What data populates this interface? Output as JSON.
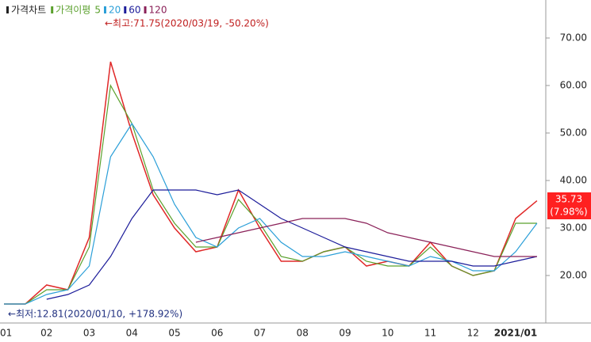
{
  "chart_data": {
    "type": "line",
    "legend_group": "가격이평",
    "categories": [
      "01",
      null,
      "02",
      null,
      "03",
      null,
      "04",
      null,
      "05",
      null,
      "06",
      null,
      "07",
      null,
      "08",
      null,
      "09",
      null,
      "10",
      null,
      "11",
      null,
      "12",
      null,
      "2021/01",
      null
    ],
    "series": [
      {
        "name": "가격차트",
        "color": "#e02828",
        "values": [
          14,
          14,
          18,
          17,
          28,
          65,
          50,
          37,
          30,
          25,
          26,
          38,
          30,
          23,
          23,
          25,
          26,
          22,
          23,
          22,
          27,
          22,
          20,
          21,
          32,
          35.73
        ]
      },
      {
        "name": "5",
        "color": "#5aa02c",
        "values": [
          14,
          14,
          17,
          17,
          26,
          60,
          52,
          38,
          31,
          26,
          26,
          36,
          31,
          24,
          23,
          25,
          26,
          23,
          22,
          22,
          26,
          22,
          20,
          21,
          31,
          31
        ]
      },
      {
        "name": "20",
        "color": "#2b9fd8",
        "values": [
          14,
          14,
          16,
          17,
          22,
          45,
          52,
          45,
          35,
          28,
          26,
          30,
          32,
          27,
          24,
          24,
          25,
          24,
          23,
          22,
          24,
          23,
          21,
          21,
          25,
          31
        ]
      },
      {
        "name": "60",
        "color": "#1c1c9a",
        "values": [
          null,
          null,
          15,
          16,
          18,
          24,
          32,
          38,
          38,
          38,
          37,
          38,
          35,
          32,
          30,
          28,
          26,
          25,
          24,
          23,
          23,
          23,
          22,
          22,
          23,
          24
        ]
      },
      {
        "name": "120",
        "color": "#8a2058",
        "values": [
          null,
          null,
          null,
          null,
          null,
          null,
          null,
          null,
          null,
          27,
          28,
          29,
          30,
          31,
          32,
          32,
          32,
          31,
          29,
          28,
          27,
          26,
          25,
          24,
          24,
          24
        ]
      }
    ],
    "ylim": [
      10,
      78
    ],
    "yticks": [
      {
        "value": 20,
        "label": "20.00"
      },
      {
        "value": 30,
        "label": "30.00"
      },
      {
        "value": 40,
        "label": "40.00"
      },
      {
        "value": 50,
        "label": "50.00"
      },
      {
        "value": 60,
        "label": "60.00"
      },
      {
        "value": 70,
        "label": "70.00"
      }
    ],
    "annotations": [
      "←최고:71.75(2020/03/19, -50.20%)",
      "←최저:12.81(2020/01/10, +178.92%)"
    ],
    "last_price": 35.73,
    "last_change": "(7.98%)"
  }
}
